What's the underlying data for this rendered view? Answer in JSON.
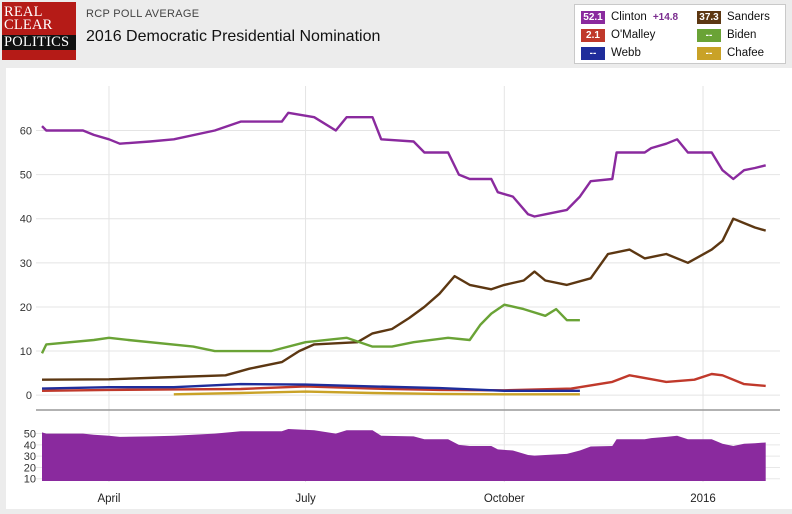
{
  "header": {
    "logo_lines": [
      "REAL",
      "CLEAR",
      "POLITICS"
    ],
    "subtitle": "RCP POLL AVERAGE",
    "title": "2016 Democratic Presidential Nomination"
  },
  "legend": [
    {
      "value": "52.1",
      "name": "Clinton",
      "spread": "+14.8",
      "color": "#8a2a9e"
    },
    {
      "value": "37.3",
      "name": "Sanders",
      "spread": "",
      "color": "#5c3712"
    },
    {
      "value": "2.1",
      "name": "O'Malley",
      "spread": "",
      "color": "#c0392b"
    },
    {
      "value": "--",
      "name": "Biden",
      "spread": "",
      "color": "#6aa336"
    },
    {
      "value": "--",
      "name": "Webb",
      "spread": "",
      "color": "#1f2d9b"
    },
    {
      "value": "--",
      "name": "Chafee",
      "spread": "",
      "color": "#c9a227"
    }
  ],
  "chart_data": {
    "type": "line",
    "x_range": [
      "2015-03-01",
      "2016-02-01"
    ],
    "ylim": [
      -2,
      66
    ],
    "y_ticks": [
      0,
      10,
      20,
      30,
      40,
      50,
      60
    ],
    "x_ticks": [
      {
        "label": "April",
        "date": "2015-04-01"
      },
      {
        "label": "July",
        "date": "2015-07-01"
      },
      {
        "label": "October",
        "date": "2015-10-01"
      },
      {
        "label": "2016",
        "date": "2016-01-01"
      }
    ],
    "grid": true,
    "series": [
      {
        "name": "Clinton",
        "color": "#8a2a9e",
        "points": [
          [
            "2015-03-01",
            61
          ],
          [
            "2015-03-03",
            60
          ],
          [
            "2015-03-20",
            60
          ],
          [
            "2015-03-25",
            59
          ],
          [
            "2015-04-01",
            58
          ],
          [
            "2015-04-06",
            57
          ],
          [
            "2015-04-20",
            57.5
          ],
          [
            "2015-05-01",
            58
          ],
          [
            "2015-05-20",
            60
          ],
          [
            "2015-06-01",
            62
          ],
          [
            "2015-06-20",
            62
          ],
          [
            "2015-06-23",
            64
          ],
          [
            "2015-07-05",
            63
          ],
          [
            "2015-07-15",
            60
          ],
          [
            "2015-07-20",
            63
          ],
          [
            "2015-08-01",
            63
          ],
          [
            "2015-08-05",
            58
          ],
          [
            "2015-08-20",
            57.5
          ],
          [
            "2015-08-25",
            55
          ],
          [
            "2015-09-05",
            55
          ],
          [
            "2015-09-10",
            50
          ],
          [
            "2015-09-15",
            49
          ],
          [
            "2015-09-25",
            49
          ],
          [
            "2015-09-28",
            46
          ],
          [
            "2015-10-05",
            45
          ],
          [
            "2015-10-12",
            41
          ],
          [
            "2015-10-15",
            40.5
          ],
          [
            "2015-10-20",
            41
          ],
          [
            "2015-10-30",
            42
          ],
          [
            "2015-11-05",
            45
          ],
          [
            "2015-11-10",
            48.5
          ],
          [
            "2015-11-20",
            49
          ],
          [
            "2015-11-22",
            55
          ],
          [
            "2015-12-05",
            55
          ],
          [
            "2015-12-08",
            56
          ],
          [
            "2015-12-15",
            57
          ],
          [
            "2015-12-20",
            58
          ],
          [
            "2015-12-25",
            55
          ],
          [
            "2016-01-05",
            55
          ],
          [
            "2016-01-10",
            51
          ],
          [
            "2016-01-15",
            49
          ],
          [
            "2016-01-20",
            51
          ],
          [
            "2016-01-25",
            51.5
          ],
          [
            "2016-01-30",
            52.1
          ]
        ]
      },
      {
        "name": "Sanders",
        "color": "#5c3712",
        "points": [
          [
            "2015-03-01",
            3.5
          ],
          [
            "2015-04-01",
            3.6
          ],
          [
            "2015-04-25",
            4
          ],
          [
            "2015-05-25",
            4.5
          ],
          [
            "2015-06-05",
            6
          ],
          [
            "2015-06-20",
            7.5
          ],
          [
            "2015-06-28",
            10
          ],
          [
            "2015-07-05",
            11.5
          ],
          [
            "2015-07-25",
            12
          ],
          [
            "2015-08-01",
            14
          ],
          [
            "2015-08-10",
            15
          ],
          [
            "2015-08-18",
            17.5
          ],
          [
            "2015-08-25",
            20
          ],
          [
            "2015-09-01",
            23
          ],
          [
            "2015-09-08",
            27
          ],
          [
            "2015-09-15",
            25
          ],
          [
            "2015-09-25",
            24
          ],
          [
            "2015-10-01",
            25
          ],
          [
            "2015-10-10",
            26
          ],
          [
            "2015-10-15",
            28
          ],
          [
            "2015-10-20",
            26
          ],
          [
            "2015-10-30",
            25
          ],
          [
            "2015-11-10",
            26.5
          ],
          [
            "2015-11-18",
            32
          ],
          [
            "2015-11-28",
            33
          ],
          [
            "2015-12-05",
            31
          ],
          [
            "2015-12-15",
            32
          ],
          [
            "2015-12-25",
            30
          ],
          [
            "2016-01-05",
            33
          ],
          [
            "2016-01-10",
            35
          ],
          [
            "2016-01-15",
            40
          ],
          [
            "2016-01-20",
            39
          ],
          [
            "2016-01-25",
            38
          ],
          [
            "2016-01-30",
            37.3
          ]
        ]
      },
      {
        "name": "Biden",
        "color": "#6aa336",
        "points": [
          [
            "2015-03-01",
            9.5
          ],
          [
            "2015-03-03",
            11.5
          ],
          [
            "2015-03-25",
            12.5
          ],
          [
            "2015-04-01",
            13
          ],
          [
            "2015-04-10",
            12.5
          ],
          [
            "2015-05-10",
            11
          ],
          [
            "2015-05-20",
            10
          ],
          [
            "2015-06-15",
            10
          ],
          [
            "2015-07-01",
            12
          ],
          [
            "2015-07-20",
            13
          ],
          [
            "2015-08-01",
            11
          ],
          [
            "2015-08-10",
            11
          ],
          [
            "2015-08-20",
            12
          ],
          [
            "2015-09-05",
            13
          ],
          [
            "2015-09-15",
            12.5
          ],
          [
            "2015-09-20",
            16
          ],
          [
            "2015-09-25",
            18.5
          ],
          [
            "2015-10-01",
            20.5
          ],
          [
            "2015-10-10",
            19.5
          ],
          [
            "2015-10-20",
            18
          ],
          [
            "2015-10-25",
            19.5
          ],
          [
            "2015-10-30",
            17
          ],
          [
            "2015-11-05",
            17
          ]
        ]
      },
      {
        "name": "O'Malley",
        "color": "#c0392b",
        "points": [
          [
            "2015-03-01",
            1
          ],
          [
            "2015-04-01",
            1.2
          ],
          [
            "2015-05-01",
            1.3
          ],
          [
            "2015-06-01",
            1.4
          ],
          [
            "2015-07-01",
            2
          ],
          [
            "2015-08-01",
            1.5
          ],
          [
            "2015-09-01",
            1.2
          ],
          [
            "2015-10-01",
            1.1
          ],
          [
            "2015-11-01",
            1.5
          ],
          [
            "2015-11-20",
            3
          ],
          [
            "2015-11-28",
            4.5
          ],
          [
            "2015-12-15",
            3
          ],
          [
            "2015-12-28",
            3.5
          ],
          [
            "2016-01-05",
            4.8
          ],
          [
            "2016-01-10",
            4.5
          ],
          [
            "2016-01-20",
            2.5
          ],
          [
            "2016-01-30",
            2.1
          ]
        ]
      },
      {
        "name": "Webb",
        "color": "#1f2d9b",
        "points": [
          [
            "2015-03-01",
            1.5
          ],
          [
            "2015-04-01",
            1.8
          ],
          [
            "2015-05-01",
            1.8
          ],
          [
            "2015-06-01",
            2.5
          ],
          [
            "2015-07-01",
            2.4
          ],
          [
            "2015-08-01",
            2
          ],
          [
            "2015-09-01",
            1.6
          ],
          [
            "2015-10-01",
            1
          ],
          [
            "2015-10-20",
            1
          ],
          [
            "2015-11-05",
            1
          ]
        ]
      },
      {
        "name": "Chafee",
        "color": "#c9a227",
        "points": [
          [
            "2015-05-01",
            0.2
          ],
          [
            "2015-06-01",
            0.5
          ],
          [
            "2015-07-01",
            0.8
          ],
          [
            "2015-08-01",
            0.5
          ],
          [
            "2015-09-01",
            0.3
          ],
          [
            "2015-10-01",
            0.2
          ],
          [
            "2015-11-05",
            0.2
          ]
        ]
      }
    ],
    "overview": {
      "type": "area",
      "series": "Clinton",
      "color": "#8a2a9e",
      "y_ticks": [
        10,
        20,
        30,
        40,
        50
      ]
    }
  }
}
